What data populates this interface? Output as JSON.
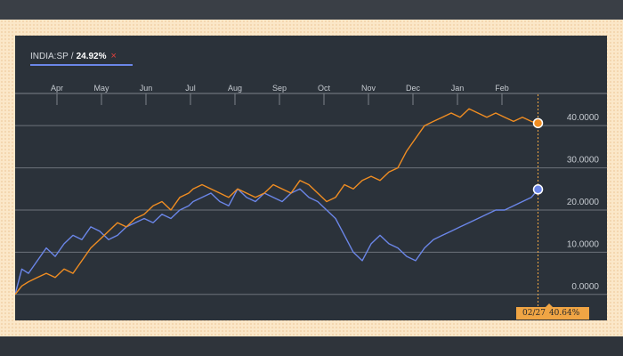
{
  "legend": {
    "ticker": "INDIA:SP",
    "separator": "/",
    "value": "24.92%",
    "close_icon": "×"
  },
  "crosshair": {
    "date": "02/27",
    "value": "40.64%"
  },
  "colors": {
    "series_blue": "#6b86e8",
    "series_orange": "#f08d22",
    "grid": "#8a8f95",
    "tag": "#f0a544"
  },
  "chart_data": {
    "type": "line",
    "x_ticks": [
      "Apr",
      "May",
      "Jun",
      "Jul",
      "Aug",
      "Sep",
      "Oct",
      "Nov",
      "Dec",
      "Jan",
      "Feb"
    ],
    "y_ticks": [
      "40.0000",
      "30.0000",
      "20.0000",
      "10.0000",
      "0.0000"
    ],
    "ylim": [
      -3,
      47
    ],
    "grid": true,
    "x_range": [
      0,
      12
    ],
    "series": [
      {
        "name": "INDIA:SP",
        "color": "#6b86e8",
        "x": [
          0,
          0.15,
          0.3,
          0.5,
          0.7,
          0.9,
          1.1,
          1.3,
          1.5,
          1.7,
          1.9,
          2.1,
          2.3,
          2.5,
          2.7,
          2.9,
          3.1,
          3.3,
          3.5,
          3.7,
          3.9,
          4.0,
          4.2,
          4.4,
          4.6,
          4.8,
          5.0,
          5.2,
          5.4,
          5.6,
          5.8,
          6.0,
          6.2,
          6.4,
          6.6,
          6.8,
          7.0,
          7.2,
          7.4,
          7.6,
          7.8,
          8.0,
          8.2,
          8.4,
          8.6,
          8.8,
          9.0,
          9.2,
          9.4,
          9.6,
          9.8,
          10.0,
          10.2,
          10.4,
          10.6,
          10.8,
          11.0,
          11.2,
          11.4,
          11.6,
          11.75
        ],
        "values": [
          0,
          6,
          5,
          8,
          11,
          9,
          12,
          14,
          13,
          16,
          15,
          13,
          14,
          16,
          17,
          18,
          17,
          19,
          18,
          20,
          21,
          22,
          23,
          24,
          22,
          21,
          25,
          23,
          22,
          24,
          23,
          22,
          24,
          25,
          23,
          22,
          20,
          18,
          14,
          10,
          8,
          12,
          14,
          12,
          11,
          9,
          8,
          11,
          13,
          14,
          15,
          16,
          17,
          18,
          19,
          20,
          20,
          21,
          22,
          23,
          24.9
        ]
      },
      {
        "name": "",
        "color": "#f08d22",
        "x": [
          0,
          0.15,
          0.3,
          0.5,
          0.7,
          0.9,
          1.1,
          1.3,
          1.5,
          1.7,
          1.9,
          2.1,
          2.3,
          2.5,
          2.7,
          2.9,
          3.1,
          3.3,
          3.5,
          3.7,
          3.9,
          4.0,
          4.2,
          4.4,
          4.6,
          4.8,
          5.0,
          5.2,
          5.4,
          5.6,
          5.8,
          6.0,
          6.2,
          6.4,
          6.6,
          6.8,
          7.0,
          7.2,
          7.4,
          7.6,
          7.8,
          8.0,
          8.2,
          8.4,
          8.6,
          8.8,
          9.0,
          9.2,
          9.4,
          9.6,
          9.8,
          10.0,
          10.2,
          10.4,
          10.6,
          10.8,
          11.0,
          11.2,
          11.4,
          11.6,
          11.75
        ],
        "values": [
          0,
          2,
          3,
          4,
          5,
          4,
          6,
          5,
          8,
          11,
          13,
          15,
          17,
          16,
          18,
          19,
          21,
          22,
          20,
          23,
          24,
          25,
          26,
          25,
          24,
          23,
          25,
          24,
          23,
          24,
          26,
          25,
          24,
          27,
          26,
          24,
          22,
          23,
          26,
          25,
          27,
          28,
          27,
          29,
          30,
          34,
          37,
          40,
          41,
          42,
          43,
          42,
          44,
          43,
          42,
          43,
          42,
          41,
          42,
          41,
          40.6
        ]
      }
    ]
  }
}
